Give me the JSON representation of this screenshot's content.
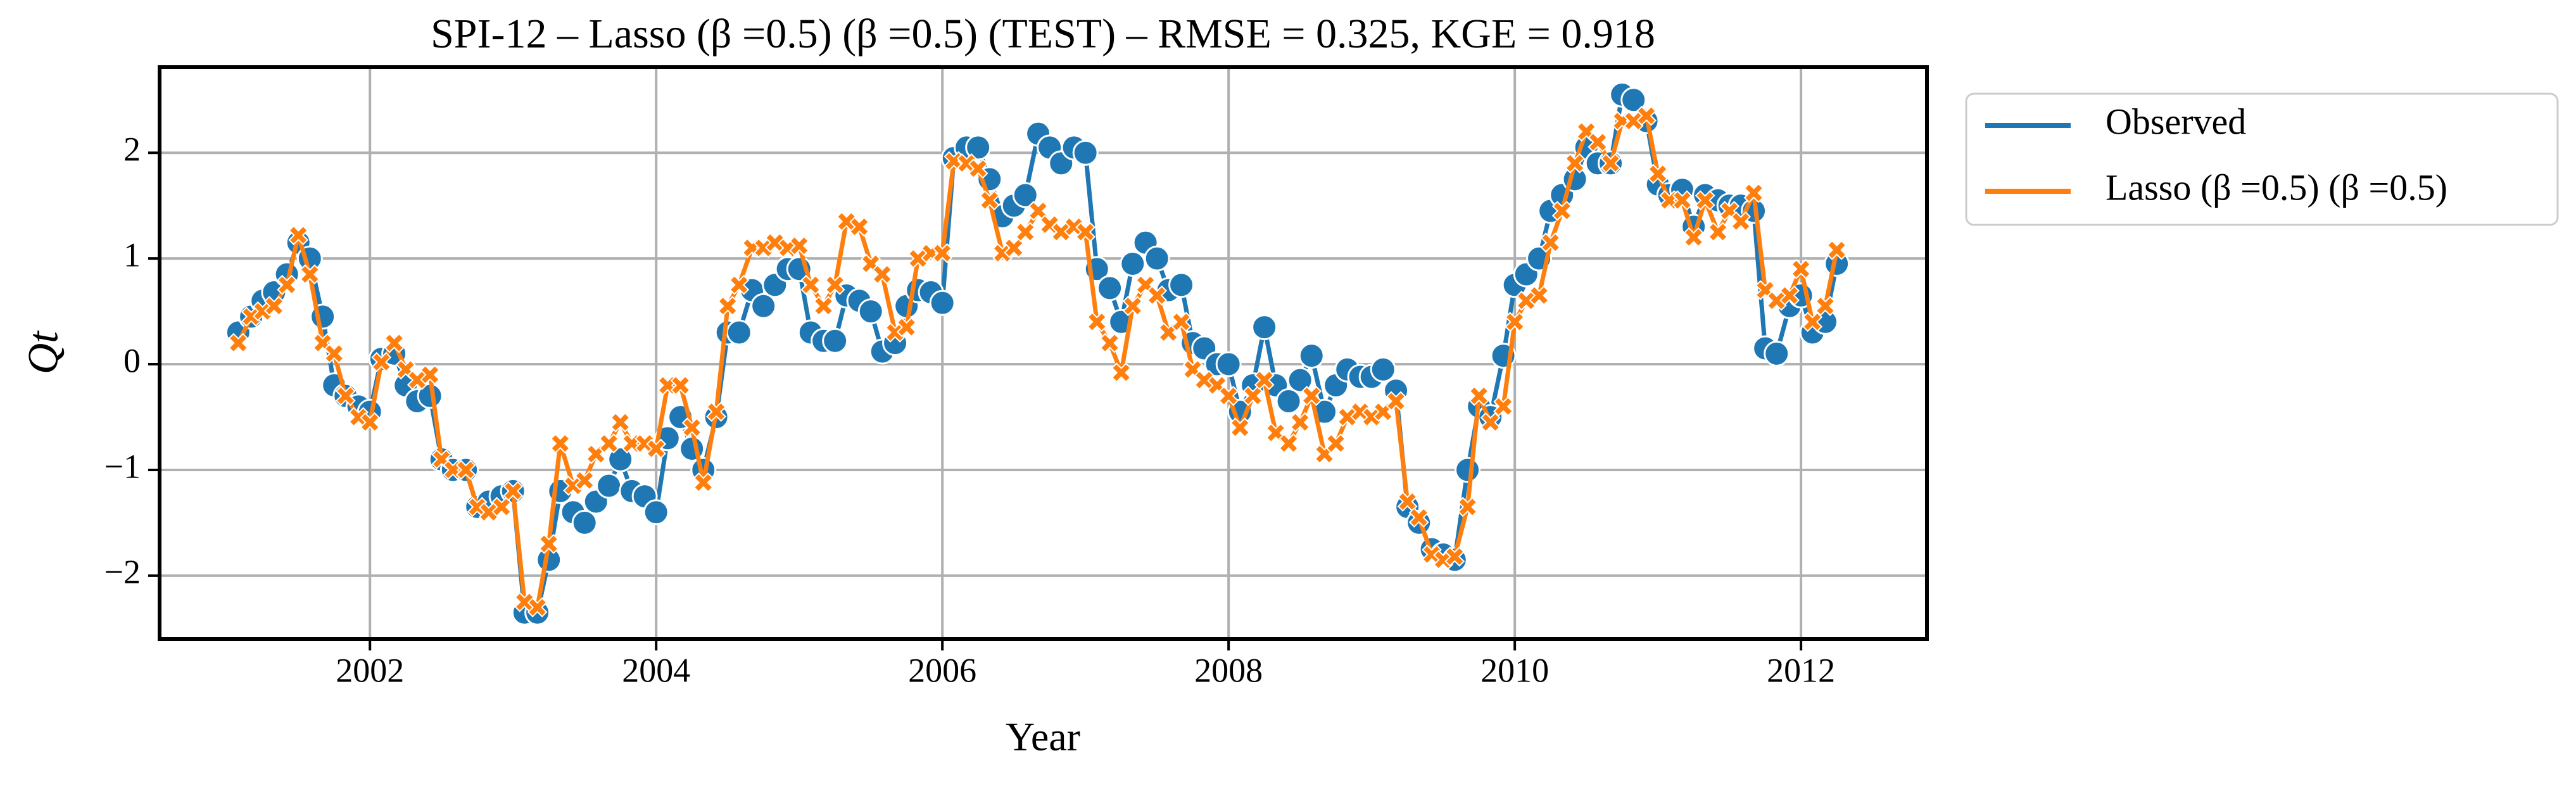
{
  "chart_data": {
    "type": "line",
    "title": "SPI-12 – Lasso (β =0.5) (β =0.5) (TEST) – RMSE = 0.325, KGE = 0.918",
    "x_label": "Year",
    "y_label": "Qt",
    "xlim": [
      2000.53,
      2012.88
    ],
    "ylim": [
      -2.6,
      2.81
    ],
    "xticks": [
      2002,
      2004,
      2006,
      2008,
      2010,
      2012
    ],
    "yticks": [
      {
        "value": -2,
        "label": "−2"
      },
      {
        "value": -1,
        "label": "−1"
      },
      0,
      1,
      2
    ],
    "grid": true,
    "legend": "outside-upper-right",
    "x": [
      2001.08,
      2001.17,
      2001.25,
      2001.33,
      2001.42,
      2001.5,
      2001.58,
      2001.67,
      2001.75,
      2001.83,
      2001.92,
      2002,
      2002.08,
      2002.17,
      2002.25,
      2002.33,
      2002.42,
      2002.5,
      2002.58,
      2002.67,
      2002.75,
      2002.83,
      2002.92,
      2003,
      2003.08,
      2003.17,
      2003.25,
      2003.33,
      2003.42,
      2003.5,
      2003.58,
      2003.67,
      2003.75,
      2003.83,
      2003.92,
      2004,
      2004.08,
      2004.17,
      2004.25,
      2004.33,
      2004.42,
      2004.5,
      2004.58,
      2004.67,
      2004.75,
      2004.83,
      2004.92,
      2005,
      2005.08,
      2005.17,
      2005.25,
      2005.33,
      2005.42,
      2005.5,
      2005.58,
      2005.67,
      2005.75,
      2005.83,
      2005.92,
      2006,
      2006.08,
      2006.17,
      2006.25,
      2006.33,
      2006.42,
      2006.5,
      2006.58,
      2006.67,
      2006.75,
      2006.83,
      2006.92,
      2007,
      2007.08,
      2007.17,
      2007.25,
      2007.33,
      2007.42,
      2007.5,
      2007.58,
      2007.67,
      2007.75,
      2007.83,
      2007.92,
      2008,
      2008.08,
      2008.17,
      2008.25,
      2008.33,
      2008.42,
      2008.5,
      2008.58,
      2008.67,
      2008.75,
      2008.83,
      2008.92,
      2009,
      2009.08,
      2009.17,
      2009.25,
      2009.33,
      2009.42,
      2009.5,
      2009.58,
      2009.67,
      2009.75,
      2009.83,
      2009.92,
      2010,
      2010.08,
      2010.17,
      2010.25,
      2010.33,
      2010.42,
      2010.5,
      2010.58,
      2010.67,
      2010.75,
      2010.83,
      2010.92,
      2011,
      2011.08,
      2011.17,
      2011.25,
      2011.33,
      2011.42,
      2011.5,
      2011.58,
      2011.67,
      2011.75,
      2011.83,
      2011.92,
      2012,
      2012.08,
      2012.17,
      2012.25
    ],
    "series": [
      {
        "name": "Observed",
        "color": "#1f77b4",
        "marker": "circle",
        "values": [
          0.3,
          0.45,
          0.6,
          0.68,
          0.85,
          1.15,
          1.0,
          0.45,
          -0.2,
          -0.3,
          -0.4,
          -0.45,
          0.05,
          0.1,
          -0.2,
          -0.35,
          -0.3,
          -0.9,
          -1.0,
          -1.0,
          -1.35,
          -1.3,
          -1.25,
          -1.2,
          -2.35,
          -2.35,
          -1.85,
          -1.2,
          -1.4,
          -1.5,
          -1.3,
          -1.15,
          -0.9,
          -1.2,
          -1.25,
          -1.4,
          -0.7,
          -0.5,
          -0.8,
          -1.0,
          -0.5,
          0.3,
          0.3,
          0.7,
          0.55,
          0.75,
          0.9,
          0.9,
          0.3,
          0.22,
          0.22,
          0.65,
          0.6,
          0.5,
          0.12,
          0.2,
          0.55,
          0.7,
          0.68,
          0.58,
          1.95,
          2.05,
          2.05,
          1.75,
          1.4,
          1.5,
          1.6,
          2.18,
          2.05,
          1.9,
          2.05,
          2.0,
          0.9,
          0.72,
          0.4,
          0.95,
          1.15,
          1.0,
          0.7,
          0.75,
          0.2,
          0.15,
          0.0,
          0.0,
          -0.45,
          -0.2,
          0.35,
          -0.2,
          -0.35,
          -0.15,
          0.08,
          -0.45,
          -0.2,
          -0.05,
          -0.12,
          -0.12,
          -0.05,
          -0.25,
          -1.35,
          -1.5,
          -1.75,
          -1.8,
          -1.85,
          -1.0,
          -0.4,
          -0.5,
          0.08,
          0.75,
          0.85,
          1.0,
          1.45,
          1.6,
          1.75,
          2.05,
          1.9,
          1.9,
          2.55,
          2.5,
          2.3,
          1.7,
          1.6,
          1.65,
          1.3,
          1.6,
          1.55,
          1.5,
          1.5,
          1.45,
          0.15,
          0.1,
          0.55,
          0.65,
          0.3,
          0.4,
          0.95
        ]
      },
      {
        "name": "Lasso (β =0.5) (β =0.5)",
        "color": "#ff7f0e",
        "marker": "x",
        "values": [
          0.2,
          0.45,
          0.5,
          0.55,
          0.75,
          1.22,
          0.85,
          0.2,
          0.1,
          -0.3,
          -0.5,
          -0.55,
          0.02,
          0.2,
          -0.05,
          -0.15,
          -0.1,
          -0.9,
          -1.0,
          -1.0,
          -1.35,
          -1.4,
          -1.35,
          -1.2,
          -2.25,
          -2.3,
          -1.7,
          -0.75,
          -1.15,
          -1.1,
          -0.85,
          -0.75,
          -0.55,
          -0.75,
          -0.75,
          -0.8,
          -0.2,
          -0.2,
          -0.6,
          -1.12,
          -0.45,
          0.55,
          0.75,
          1.1,
          1.1,
          1.15,
          1.1,
          1.12,
          0.75,
          0.55,
          0.75,
          1.35,
          1.3,
          0.95,
          0.85,
          0.3,
          0.35,
          1.0,
          1.05,
          1.05,
          1.92,
          1.9,
          1.85,
          1.55,
          1.05,
          1.1,
          1.25,
          1.45,
          1.32,
          1.25,
          1.3,
          1.25,
          0.4,
          0.2,
          -0.08,
          0.55,
          0.75,
          0.65,
          0.3,
          0.4,
          -0.05,
          -0.15,
          -0.2,
          -0.3,
          -0.6,
          -0.3,
          -0.15,
          -0.65,
          -0.75,
          -0.55,
          -0.3,
          -0.85,
          -0.75,
          -0.5,
          -0.45,
          -0.5,
          -0.45,
          -0.35,
          -1.3,
          -1.45,
          -1.8,
          -1.85,
          -1.82,
          -1.35,
          -0.3,
          -0.55,
          -0.4,
          0.4,
          0.6,
          0.65,
          1.15,
          1.45,
          1.9,
          2.2,
          2.1,
          1.9,
          2.3,
          2.3,
          2.35,
          1.8,
          1.55,
          1.55,
          1.2,
          1.55,
          1.25,
          1.45,
          1.35,
          1.62,
          0.7,
          0.6,
          0.65,
          0.9,
          0.4,
          0.55,
          1.08
        ]
      }
    ]
  }
}
